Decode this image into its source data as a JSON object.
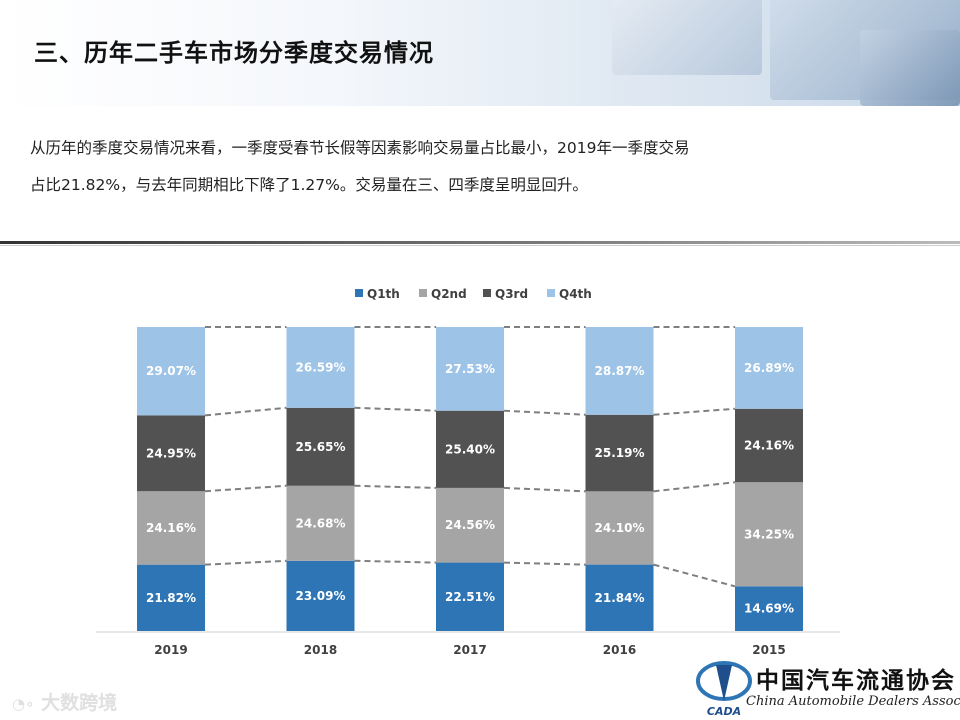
{
  "page": {
    "title": "三、历年二手车市场分季度交易情况",
    "description_line1": "从历年的季度交易情况来看，一季度受春节长假等因素影响交易量占比最小，2019年一季度交易",
    "description_line2": "占比21.82%，与去年同期相比下降了1.27%。交易量在三、四季度呈明显回升。"
  },
  "watermark": "大数跨境",
  "logo": {
    "cn": "中国汽车流通协会",
    "en": "China Automobile Dealers Association",
    "mark": "CADA"
  },
  "chart_data": {
    "type": "bar",
    "stacked": "percent",
    "categories": [
      "2019",
      "2018",
      "2017",
      "2016",
      "2015"
    ],
    "series": [
      {
        "name": "Q1th",
        "color": "#2e75b6",
        "values": [
          21.82,
          23.09,
          22.51,
          21.84,
          14.69
        ]
      },
      {
        "name": "Q2nd",
        "color": "#a5a5a5",
        "values": [
          24.16,
          24.68,
          24.56,
          24.1,
          34.25
        ]
      },
      {
        "name": "Q3rd",
        "color": "#525252",
        "values": [
          24.95,
          25.65,
          25.4,
          25.19,
          24.16
        ]
      },
      {
        "name": "Q4th",
        "color": "#9dc3e6",
        "values": [
          29.07,
          26.59,
          27.53,
          28.87,
          26.89
        ]
      }
    ],
    "legend": "top",
    "ylim": [
      0,
      100
    ],
    "series_lines": "dashed",
    "title": "",
    "xlabel": "",
    "ylabel": ""
  }
}
